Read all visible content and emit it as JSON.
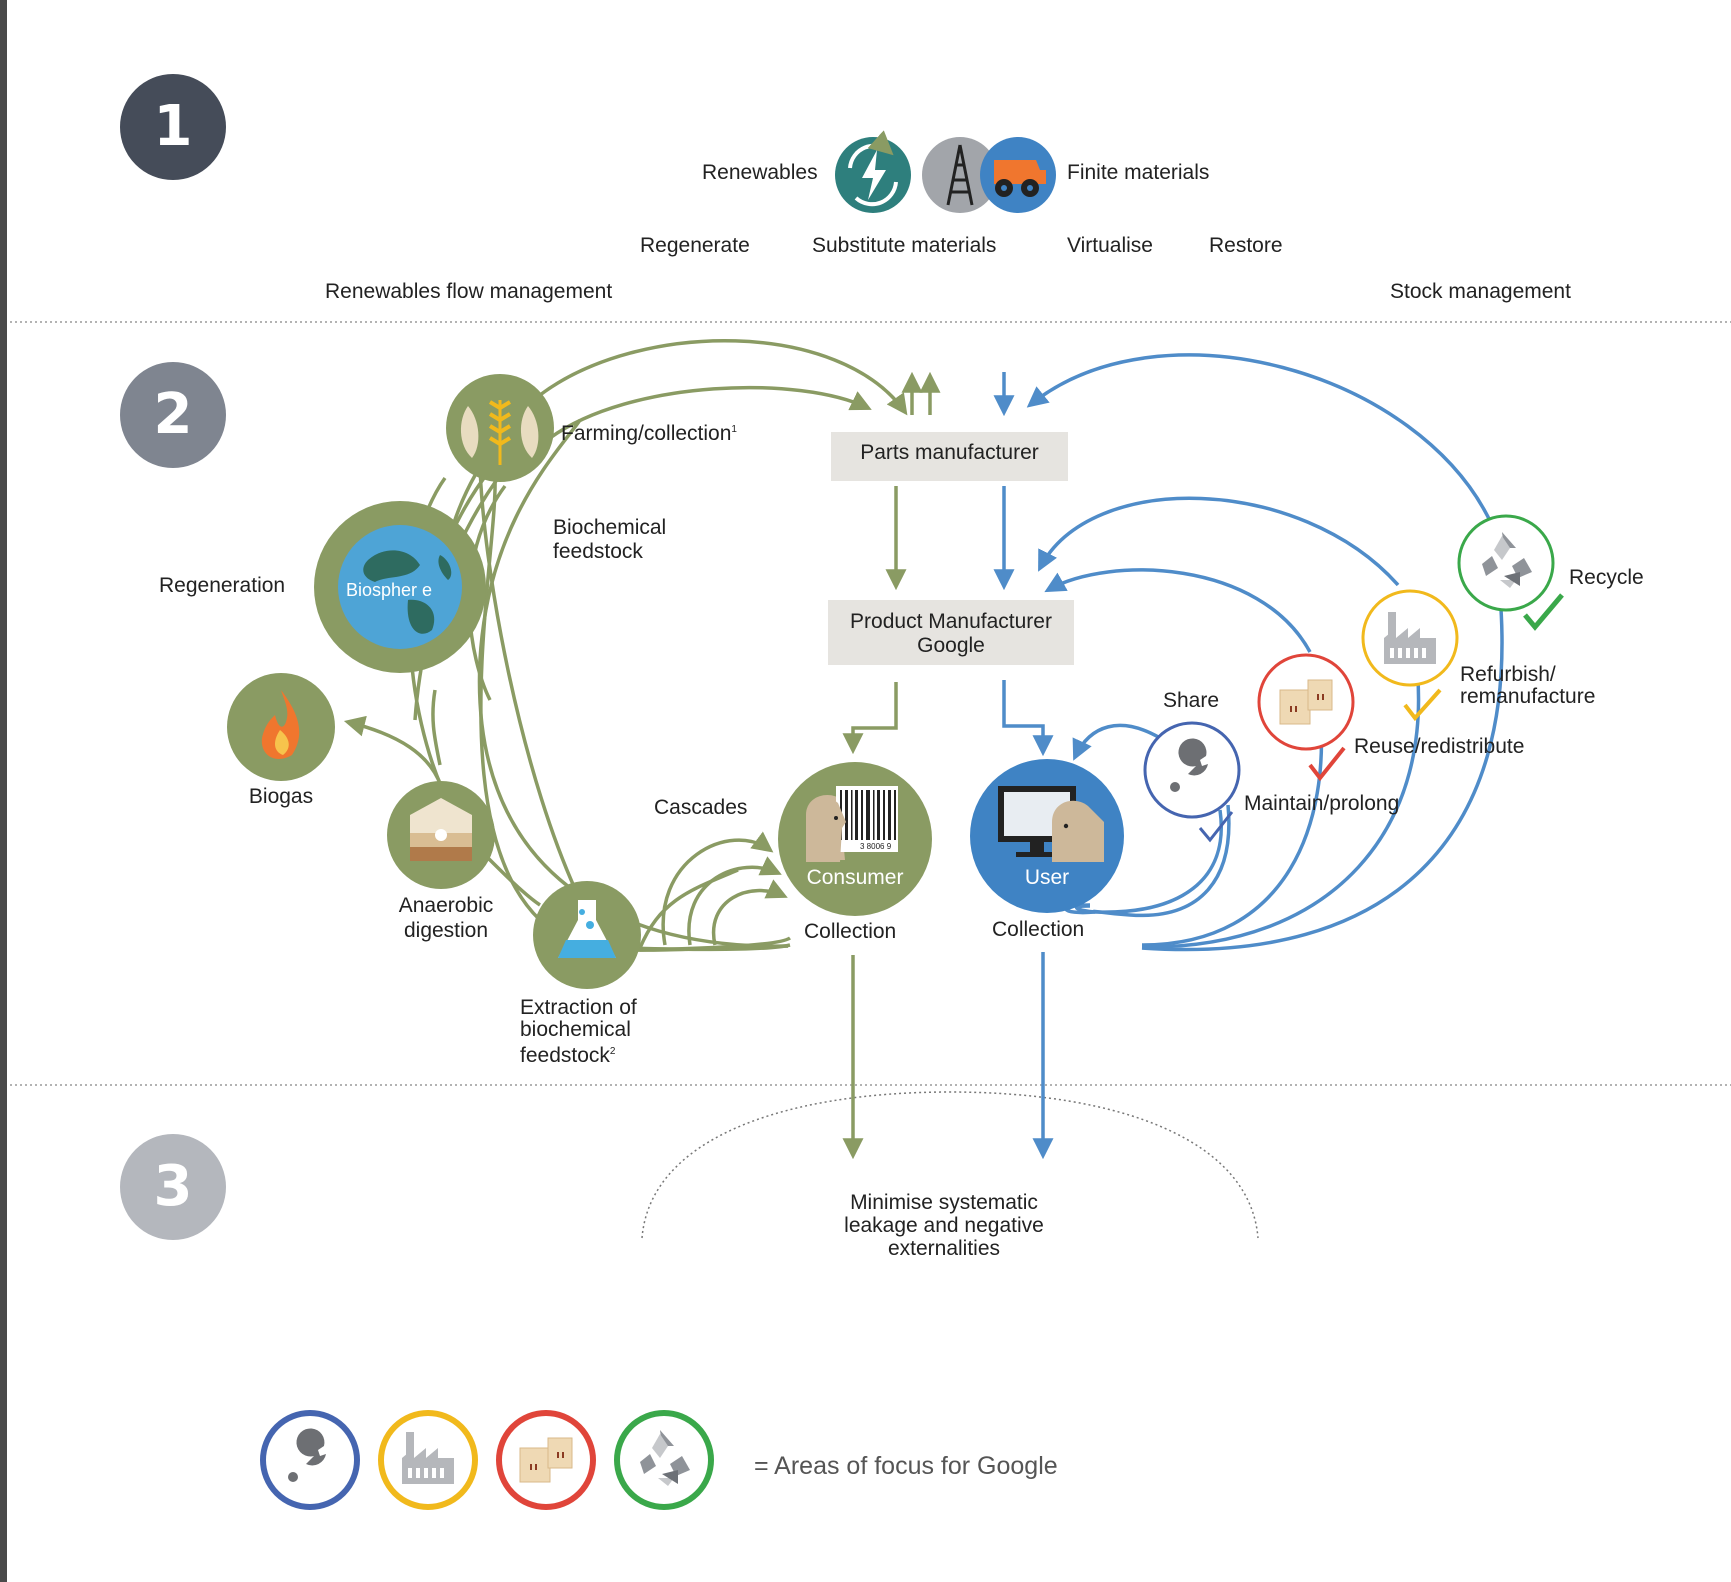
{
  "sections": [
    "1",
    "2",
    "3"
  ],
  "colors": {
    "green": "#8a9b63",
    "blue": "#4f8cc9",
    "dark": "#454c59",
    "mid": "#7f8590",
    "light": "#b4b7bd",
    "red": "#e0453a",
    "yellow": "#f1b91c",
    "focus_green": "#3aa84a",
    "focus_blue": "#4565b0"
  },
  "top": {
    "renewables": "Renewables",
    "finite_materials": "Finite materials",
    "actions": [
      "Regenerate",
      "Substitute materials",
      "Virtualise",
      "Restore"
    ],
    "renewables_flow": "Renewables flow management",
    "stock_management": "Stock management",
    "icons": [
      "renewable-energy-icon",
      "oil-derrick-icon",
      "mining-truck-icon"
    ]
  },
  "diagram": {
    "parts_manufacturer": "Parts manufacturer",
    "product_manufacturer": [
      "Product Manufacturer",
      "Google"
    ],
    "farming": "Farming/collection",
    "farming_sup": "1",
    "biochemical_feedstock": [
      "Biochemical",
      "feedstock"
    ],
    "regeneration": "Regeneration",
    "biosphere": "Biospher  e",
    "biogas": "Biogas",
    "anaerobic": [
      "Anaerobic",
      "digestion"
    ],
    "extraction": [
      "Extraction of",
      "biochemical",
      "feedstock"
    ],
    "extraction_sup": "2",
    "cascades": "Cascades",
    "consumer": "Consumer",
    "user": "User",
    "collection_left": "Collection",
    "collection_right": "Collection",
    "barcode_digits": "3 8006 9",
    "share": "Share",
    "maintain": "Maintain/prolong",
    "reuse": "Reuse/redistribute",
    "refurbish": [
      "Refurbish/",
      "remanufacture"
    ],
    "recycle": "Recycle",
    "leakage": [
      "Minimise systematic",
      "leakage and negative",
      "externalities"
    ]
  },
  "legend": {
    "text": "= Areas of focus for Google",
    "icons": [
      "wrench-icon",
      "factory-icon",
      "boxes-icon",
      "recycle-icon"
    ]
  }
}
